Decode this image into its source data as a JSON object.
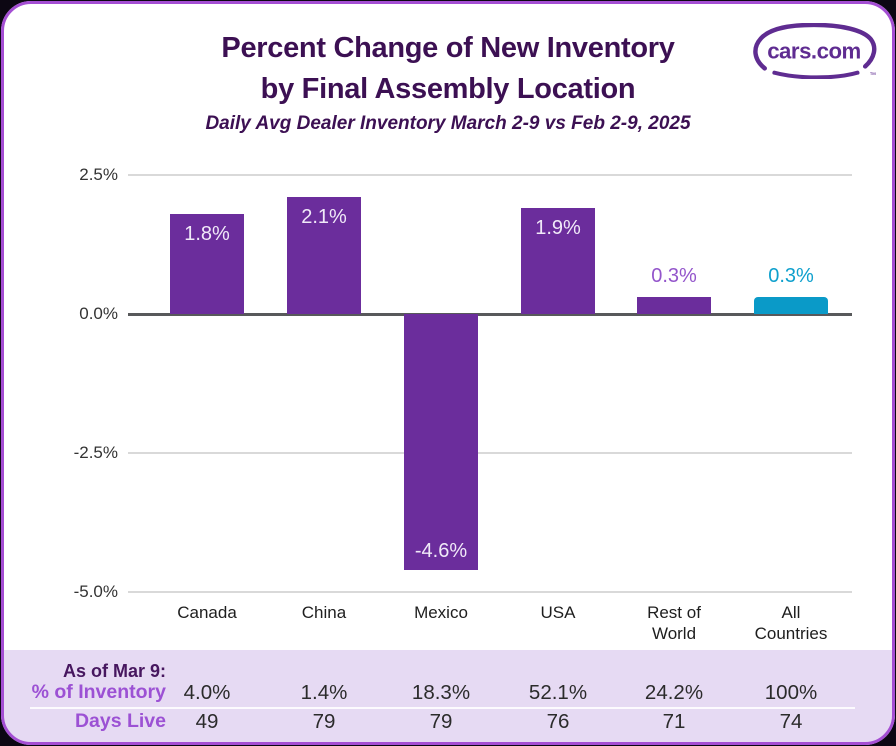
{
  "header": {
    "title": "Percent Change of New Inventory\nby Final Assembly Location",
    "subtitle": "Daily Avg Dealer Inventory March 2-9 vs Feb 2-9, 2025",
    "logo_text": "cars.com",
    "logo_tm": "™"
  },
  "chart_data": {
    "type": "bar",
    "title": "Percent Change of New Inventory by Final Assembly Location",
    "subtitle": "Daily Avg Dealer Inventory March 2-9 vs Feb 2-9, 2025",
    "categories": [
      "Canada",
      "China",
      "Mexico",
      "USA",
      "Rest of\nWorld",
      "All\nCountries"
    ],
    "values": [
      1.8,
      2.1,
      -4.6,
      1.9,
      0.3,
      0.3
    ],
    "value_labels": [
      "1.8%",
      "2.1%",
      "-4.6%",
      "1.9%",
      "0.3%",
      "0.3%"
    ],
    "label_placement": [
      "inside-top",
      "inside-top",
      "inside-bottom",
      "inside-top",
      "above",
      "above"
    ],
    "bar_colors": [
      "#6B2D9C",
      "#6B2D9C",
      "#6B2D9C",
      "#6B2D9C",
      "#6B2D9C",
      "#0A9AC8"
    ],
    "bar_top_radius": [
      0,
      0,
      0,
      0,
      0,
      4
    ],
    "value_label_colors": [
      "#F0E9F8",
      "#F0E9F8",
      "#F0E9F8",
      "#F0E9F8",
      "#9355CB",
      "#0FA0CD"
    ],
    "yticks": [
      2.5,
      0,
      -2.5,
      -5
    ],
    "ytick_labels": [
      "2.5%",
      "0.0%",
      "-2.5%",
      "-5.0%"
    ],
    "ylim": [
      -5,
      2.5
    ],
    "grid": "horizontal",
    "legend": "none"
  },
  "table": {
    "as_of_label": "As of Mar 9:",
    "rows": [
      {
        "label": "% of Inventory",
        "values": [
          "4.0%",
          "1.4%",
          "18.3%",
          "52.1%",
          "24.2%",
          "100%"
        ]
      },
      {
        "label": "Days Live",
        "values": [
          "49",
          "79",
          "79",
          "76",
          "71",
          "74"
        ]
      }
    ]
  },
  "colors": {
    "bar_purple": "#6B2D9C",
    "bar_teal": "#0A9AC8",
    "title_purple": "#3C1053",
    "border_purple": "#A44ED3",
    "band_lavender": "#E6DAF3",
    "table_label_purple": "#9C51D4",
    "table_asof_purple": "#47175F",
    "logo_purple": "#5F2C91"
  }
}
